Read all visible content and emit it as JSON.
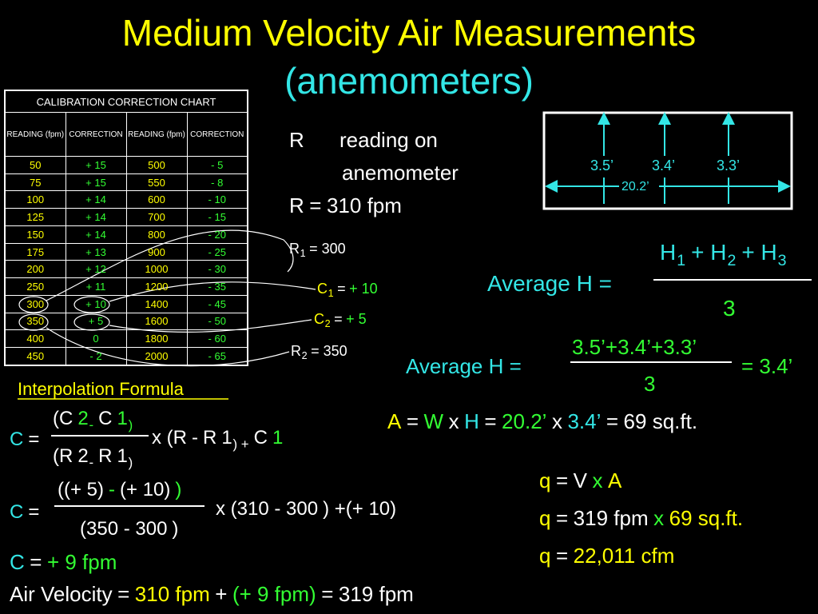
{
  "title": "Medium Velocity Air Measurements",
  "subtitle": "(anemometers)",
  "table": {
    "title": "CALIBRATION CORRECTION CHART",
    "headers": [
      "READING (fpm)",
      "CORRECTION",
      "READING (fpm)",
      "CORRECTION"
    ],
    "rows": [
      [
        "50",
        "+ 15",
        "500",
        "- 5"
      ],
      [
        "75",
        "+ 15",
        "550",
        "- 8"
      ],
      [
        "100",
        "+ 14",
        "600",
        "- 10"
      ],
      [
        "125",
        "+ 14",
        "700",
        "- 15"
      ],
      [
        "150",
        "+ 14",
        "800",
        "- 20"
      ],
      [
        "175",
        "+ 13",
        "900",
        "- 25"
      ],
      [
        "200",
        "+ 12",
        "1000",
        "- 30"
      ],
      [
        "250",
        "+ 11",
        "1200",
        "- 35"
      ],
      [
        "300",
        "+ 10",
        "1400",
        "- 45"
      ],
      [
        "350",
        "+ 5",
        "1600",
        "- 50"
      ],
      [
        "400",
        "0",
        "1800",
        "- 60"
      ],
      [
        "450",
        "- 2",
        "2000",
        "- 65"
      ]
    ]
  },
  "definitions": {
    "r_symbol": "R",
    "r_meaning_1": "reading on",
    "r_meaning_2": "anemometer",
    "r_value": [
      "R",
      "=",
      "310 fpm"
    ]
  },
  "lookups": {
    "r1": [
      "R",
      "1",
      "= 300"
    ],
    "c1": [
      "C",
      "1",
      "=",
      "+ 10"
    ],
    "c2": [
      "C",
      "2",
      "=",
      "+ 5"
    ],
    "r2": [
      "R",
      "2",
      "= 350"
    ]
  },
  "diagram": {
    "heights": [
      "3.5’",
      "3.4’",
      "3.3’"
    ],
    "width": "20.2’"
  },
  "average_h": {
    "label": "Average H =",
    "numerator": [
      "H",
      "1",
      "+ H",
      "2",
      "+ H",
      "3"
    ],
    "denominator": "3"
  },
  "average_h_calc": {
    "label": "Average H =",
    "numerator": "3.5’+3.4’+3.3’",
    "denominator": "3",
    "result": "= 3.4’"
  },
  "area": [
    "A",
    "=",
    "W",
    "x",
    "H",
    "=",
    "20.2’",
    "x",
    "3.4’",
    "=",
    "69 sq.ft."
  ],
  "interpolation": {
    "heading": "Interpolation Formula",
    "formula": {
      "lhs": [
        "C",
        "="
      ],
      "numerator": [
        "(",
        "C",
        "2",
        "-",
        "C",
        "1",
        ")"
      ],
      "denominator": [
        "(",
        "R",
        "2",
        "-",
        "R",
        "1",
        ")"
      ],
      "rest": [
        "x (",
        "R",
        "-",
        "R",
        "1",
        ") +",
        "C",
        "1"
      ]
    },
    "substituted": {
      "lhs": [
        "C",
        "="
      ],
      "numerator": [
        "(",
        "(+ 5)",
        "-",
        "(+ 10)",
        ")"
      ],
      "denominator": [
        "(",
        "350 - 300",
        ")"
      ],
      "rest": [
        "x (",
        "310 - 300",
        ") +",
        "(+ 10)"
      ]
    },
    "result": [
      "C",
      "=",
      "+ 9 fpm"
    ]
  },
  "air_velocity": [
    "Air Velocity",
    "=",
    "310 fpm",
    "+",
    "(+ 9 fpm)",
    "=",
    "319 fpm"
  ],
  "flow": [
    [
      "q",
      "=",
      "V",
      "x",
      "A"
    ],
    [
      "q",
      "=",
      "319 fpm",
      "x",
      "69 sq.ft."
    ],
    [
      "q",
      "=",
      "22,011 cfm"
    ]
  ]
}
